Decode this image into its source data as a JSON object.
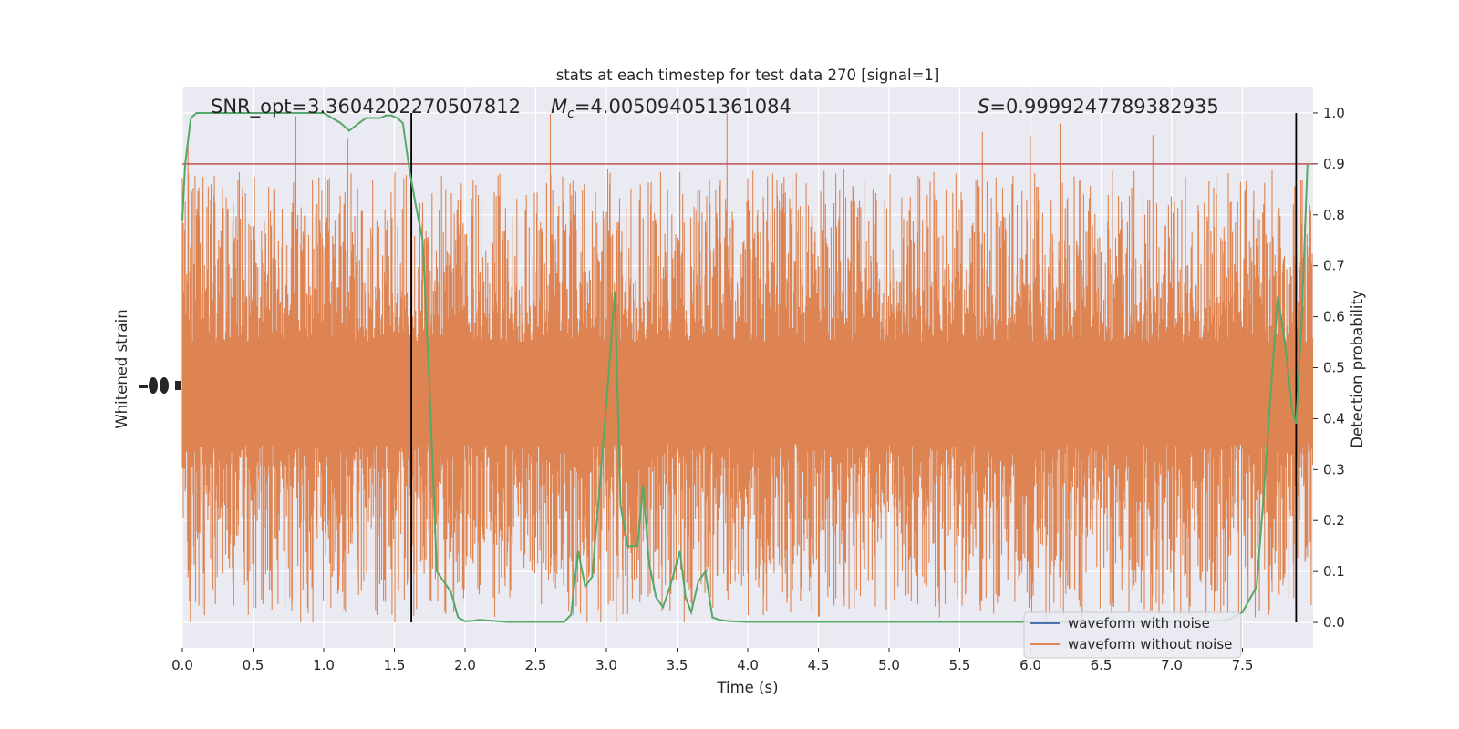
{
  "chart_data": {
    "type": "line",
    "title": "stats at each timestep for test data 270 [signal=1]",
    "xlabel": "Time (s)",
    "ylabel_left": "Whitened strain",
    "ylabel_right": "Detection probability",
    "xlim": [
      0.0,
      8.0
    ],
    "ylim_right": [
      -0.05,
      1.05
    ],
    "x_ticks": [
      "0.0",
      "0.5",
      "1.0",
      "1.5",
      "2.0",
      "2.5",
      "3.0",
      "3.5",
      "4.0",
      "4.5",
      "5.0",
      "5.5",
      "6.0",
      "6.5",
      "7.0",
      "7.5"
    ],
    "x_tick_values": [
      0.0,
      0.5,
      1.0,
      1.5,
      2.0,
      2.5,
      3.0,
      3.5,
      4.0,
      4.5,
      5.0,
      5.5,
      6.0,
      6.5,
      7.0,
      7.5
    ],
    "y_right_ticks": [
      "0.0",
      "0.1",
      "0.2",
      "0.3",
      "0.4",
      "0.5",
      "0.6",
      "0.7",
      "0.8",
      "0.9",
      "1.0"
    ],
    "y_right_tick_values": [
      0.0,
      0.1,
      0.2,
      0.3,
      0.4,
      0.5,
      0.6,
      0.7,
      0.8,
      0.9,
      1.0
    ],
    "grid": true,
    "annotations": {
      "snr": "SNR_opt=3.3604202270507812",
      "mc_symbol": "M",
      "mc_sub": "c",
      "mc_value": "=4.005094051361084",
      "s_symbol": "S",
      "s_value": "=0.9999247789382935"
    },
    "threshold": 0.9,
    "vertical_lines": [
      1.62,
      7.88
    ],
    "legend": {
      "placement": "lower-right",
      "entries": [
        "waveform with noise",
        "waveform without noise"
      ]
    },
    "series": [
      {
        "name": "waveform with noise",
        "color": "#4c72b0",
        "description_values": "strain noise, amplitude normalized"
      },
      {
        "name": "waveform without noise",
        "color": "#dd8452",
        "band_center": 0.45,
        "band_core_halfwidth": 0.1,
        "band_spike_range": [
          0.0,
          1.0
        ]
      },
      {
        "name": "detection probability",
        "color": "#55a868",
        "x": [
          0.0,
          0.02,
          0.06,
          0.1,
          0.2,
          0.4,
          0.6,
          0.8,
          1.0,
          1.06,
          1.12,
          1.18,
          1.25,
          1.3,
          1.35,
          1.4,
          1.44,
          1.48,
          1.52,
          1.56,
          1.6,
          1.65,
          1.7,
          1.75,
          1.8,
          1.9,
          1.95,
          2.0,
          2.05,
          2.1,
          2.2,
          2.3,
          2.5,
          2.7,
          2.75,
          2.8,
          2.85,
          2.9,
          2.95,
          3.0,
          3.06,
          3.1,
          3.15,
          3.18,
          3.22,
          3.26,
          3.3,
          3.35,
          3.4,
          3.45,
          3.52,
          3.56,
          3.6,
          3.65,
          3.7,
          3.75,
          3.8,
          3.85,
          3.9,
          4.0,
          4.5,
          5.0,
          5.5,
          6.0,
          6.5,
          7.0,
          7.2,
          7.3,
          7.4,
          7.5,
          7.6,
          7.65,
          7.7,
          7.75,
          7.8,
          7.85,
          7.88,
          7.92,
          7.96
        ],
        "y": [
          0.79,
          0.9,
          0.99,
          1.0,
          1.0,
          1.0,
          1.0,
          1.0,
          1.0,
          0.99,
          0.98,
          0.965,
          0.98,
          0.99,
          0.99,
          0.99,
          0.995,
          0.995,
          0.99,
          0.98,
          0.9,
          0.82,
          0.75,
          0.45,
          0.1,
          0.06,
          0.01,
          0.002,
          0.003,
          0.005,
          0.003,
          0.001,
          0.001,
          0.001,
          0.015,
          0.14,
          0.07,
          0.09,
          0.26,
          0.43,
          0.65,
          0.23,
          0.15,
          0.15,
          0.15,
          0.27,
          0.12,
          0.05,
          0.03,
          0.07,
          0.14,
          0.05,
          0.02,
          0.08,
          0.1,
          0.01,
          0.005,
          0.003,
          0.002,
          0.001,
          0.001,
          0.001,
          0.001,
          0.001,
          0.001,
          0.001,
          0.002,
          0.003,
          0.005,
          0.02,
          0.07,
          0.25,
          0.45,
          0.64,
          0.55,
          0.42,
          0.39,
          0.6,
          0.9
        ]
      },
      {
        "name": "threshold",
        "color": "#c44e52"
      }
    ]
  }
}
